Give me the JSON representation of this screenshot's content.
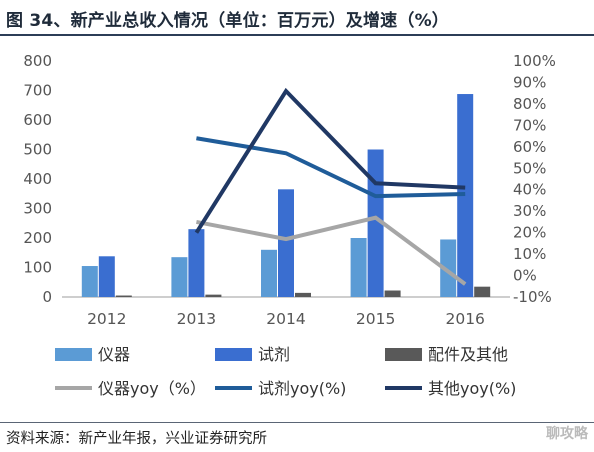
{
  "title": "图 34、新产业总收入情况（单位：百万元）及增速（%）",
  "source": "资料来源：新产业年报，兴业证券研究所",
  "watermark": "聊攻略",
  "chart_data": {
    "type": "bar",
    "categories": [
      "2012",
      "2013",
      "2014",
      "2015",
      "2016"
    ],
    "left_axis": {
      "ylim": [
        0,
        800
      ],
      "ticks": [
        "0",
        "100",
        "200",
        "300",
        "400",
        "500",
        "600",
        "700",
        "800"
      ]
    },
    "right_axis": {
      "ylim": [
        -10,
        100
      ],
      "ticks": [
        "-10%",
        "0%",
        "10%",
        "20%",
        "30%",
        "40%",
        "50%",
        "60%",
        "70%",
        "80%",
        "90%",
        "100%"
      ]
    },
    "grid": false,
    "legend_position": "bottom",
    "bar_series": [
      {
        "name": "仪器",
        "color": "#5b9bd5",
        "values": [
          105,
          135,
          160,
          200,
          195
        ]
      },
      {
        "name": "试剂",
        "color": "#3a6ed0",
        "values": [
          138,
          230,
          365,
          500,
          688
        ]
      },
      {
        "name": "配件及其他",
        "color": "#595959",
        "values": [
          5,
          8,
          14,
          22,
          35
        ]
      }
    ],
    "line_series": [
      {
        "name": "仪器yoy（%）",
        "color": "#a6a6a6",
        "values": [
          null,
          25,
          17,
          27,
          -4
        ]
      },
      {
        "name": "试剂yoy(%)",
        "color": "#1f5c99",
        "values": [
          null,
          64,
          57,
          37,
          38
        ]
      },
      {
        "name": "其他yoy(%)",
        "color": "#203864",
        "values": [
          null,
          20,
          86,
          43,
          41
        ]
      }
    ]
  }
}
